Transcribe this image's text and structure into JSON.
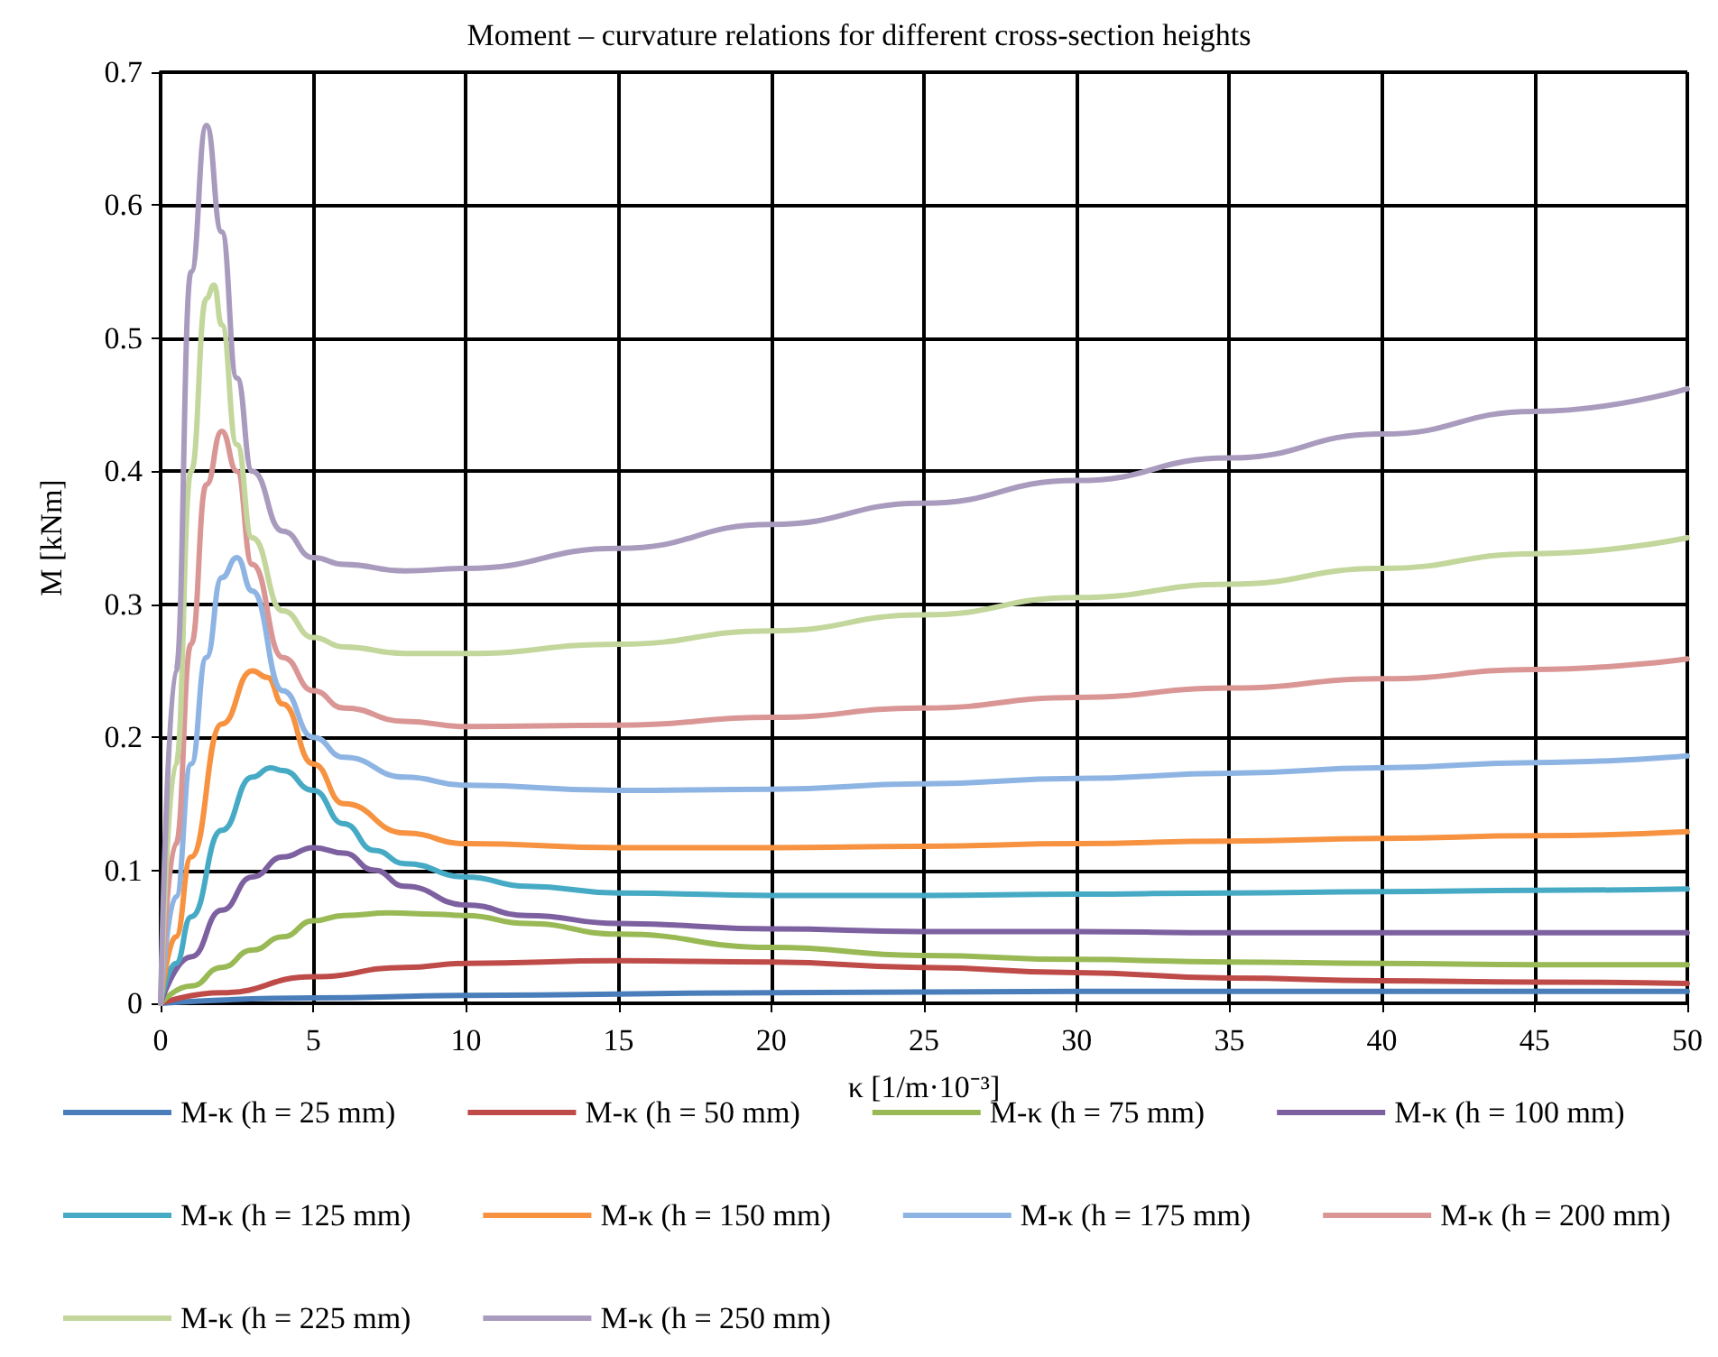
{
  "chart_data": {
    "type": "line",
    "title": "Moment – curvature relations for different cross-section heights",
    "xlabel": "κ [1/m·10⁻³]",
    "ylabel": "M [kNm]",
    "xlim": [
      0,
      50
    ],
    "xticks": [
      0,
      5,
      10,
      15,
      20,
      25,
      30,
      35,
      40,
      45,
      50
    ],
    "ylim": [
      0,
      0.7
    ],
    "yticks": [
      0,
      0.1,
      0.2,
      0.3,
      0.4,
      0.5,
      0.6,
      0.7
    ],
    "grid": true,
    "legend": "bottom",
    "marker": "none",
    "line_style": "solid",
    "series": [
      {
        "name": "M-κ (h = 25 mm)",
        "color": "#4a7ebb",
        "x": [
          0,
          5,
          10,
          20,
          30,
          40,
          50
        ],
        "values": [
          0,
          0.004,
          0.006,
          0.008,
          0.009,
          0.009,
          0.009
        ]
      },
      {
        "name": "M-κ (h = 50 mm)",
        "color": "#be4b48",
        "x": [
          0,
          2,
          5,
          8,
          10,
          15,
          20,
          25,
          30,
          35,
          40,
          45,
          50
        ],
        "values": [
          0,
          0.008,
          0.02,
          0.027,
          0.03,
          0.032,
          0.031,
          0.027,
          0.023,
          0.019,
          0.017,
          0.016,
          0.015
        ]
      },
      {
        "name": "M-κ (h = 75 mm)",
        "color": "#98b954",
        "x": [
          0,
          1,
          2,
          3,
          4,
          5,
          6,
          7.5,
          9,
          10,
          12,
          15,
          20,
          25,
          30,
          35,
          40,
          45,
          50
        ],
        "values": [
          0,
          0.013,
          0.027,
          0.04,
          0.05,
          0.062,
          0.066,
          0.068,
          0.067,
          0.066,
          0.06,
          0.052,
          0.042,
          0.036,
          0.033,
          0.031,
          0.03,
          0.029,
          0.029
        ]
      },
      {
        "name": "M-κ (h = 100 mm)",
        "color": "#7d60a0",
        "x": [
          0,
          1,
          2,
          3,
          4,
          5,
          6,
          7,
          8,
          10,
          12,
          15,
          20,
          25,
          30,
          35,
          40,
          45,
          50
        ],
        "values": [
          0,
          0.035,
          0.07,
          0.095,
          0.11,
          0.117,
          0.113,
          0.1,
          0.088,
          0.074,
          0.066,
          0.06,
          0.056,
          0.054,
          0.054,
          0.053,
          0.053,
          0.053,
          0.053
        ]
      },
      {
        "name": "M-κ (h = 125 mm)",
        "color": "#46aac5",
        "x": [
          0,
          0.5,
          1,
          2,
          3,
          3.6,
          4,
          5,
          6,
          7,
          8,
          10,
          12,
          15,
          20,
          25,
          30,
          35,
          40,
          45,
          50
        ],
        "values": [
          0,
          0.03,
          0.065,
          0.13,
          0.17,
          0.177,
          0.175,
          0.16,
          0.135,
          0.115,
          0.105,
          0.095,
          0.088,
          0.083,
          0.081,
          0.081,
          0.082,
          0.083,
          0.084,
          0.085,
          0.086
        ]
      },
      {
        "name": "M-κ (h = 150 mm)",
        "color": "#f69240",
        "x": [
          0,
          0.5,
          1,
          2,
          3,
          3.5,
          4,
          5,
          6,
          8,
          10,
          15,
          20,
          25,
          30,
          35,
          40,
          45,
          50
        ],
        "values": [
          0,
          0.05,
          0.11,
          0.21,
          0.25,
          0.245,
          0.225,
          0.18,
          0.15,
          0.128,
          0.12,
          0.117,
          0.117,
          0.118,
          0.12,
          0.122,
          0.124,
          0.126,
          0.129
        ]
      },
      {
        "name": "M-κ (h = 175 mm)",
        "color": "#8eb4e3",
        "x": [
          0,
          0.5,
          1,
          1.5,
          2,
          2.5,
          3,
          4,
          5,
          6,
          8,
          10,
          15,
          20,
          25,
          30,
          35,
          40,
          45,
          50
        ],
        "values": [
          0,
          0.08,
          0.18,
          0.26,
          0.32,
          0.335,
          0.31,
          0.235,
          0.2,
          0.185,
          0.17,
          0.164,
          0.16,
          0.161,
          0.165,
          0.169,
          0.173,
          0.177,
          0.181,
          0.186
        ]
      },
      {
        "name": "M-κ (h = 200 mm)",
        "color": "#d99694",
        "x": [
          0,
          0.5,
          1,
          1.5,
          2,
          2.5,
          3,
          4,
          5,
          6,
          8,
          10,
          15,
          20,
          25,
          30,
          35,
          40,
          45,
          50
        ],
        "values": [
          0,
          0.12,
          0.27,
          0.39,
          0.43,
          0.4,
          0.33,
          0.26,
          0.235,
          0.222,
          0.212,
          0.208,
          0.209,
          0.215,
          0.222,
          0.23,
          0.237,
          0.244,
          0.251,
          0.259
        ]
      },
      {
        "name": "M-κ (h = 225 mm)",
        "color": "#c3d69b",
        "x": [
          0,
          0.5,
          1,
          1.5,
          1.75,
          2,
          2.5,
          3,
          4,
          5,
          6,
          8,
          10,
          15,
          20,
          25,
          30,
          35,
          40,
          45,
          50
        ],
        "values": [
          0,
          0.18,
          0.4,
          0.53,
          0.54,
          0.51,
          0.42,
          0.35,
          0.295,
          0.275,
          0.268,
          0.263,
          0.263,
          0.27,
          0.28,
          0.292,
          0.305,
          0.315,
          0.327,
          0.338,
          0.35
        ]
      },
      {
        "name": "M-κ (h = 250 mm)",
        "color": "#a99bbd",
        "x": [
          0,
          0.5,
          1,
          1.5,
          2,
          2.5,
          3,
          4,
          5,
          6,
          8,
          10,
          15,
          20,
          25,
          30,
          35,
          40,
          45,
          50
        ],
        "values": [
          0,
          0.25,
          0.55,
          0.66,
          0.58,
          0.47,
          0.4,
          0.355,
          0.335,
          0.33,
          0.325,
          0.327,
          0.342,
          0.36,
          0.376,
          0.393,
          0.41,
          0.428,
          0.445,
          0.462
        ]
      }
    ]
  }
}
